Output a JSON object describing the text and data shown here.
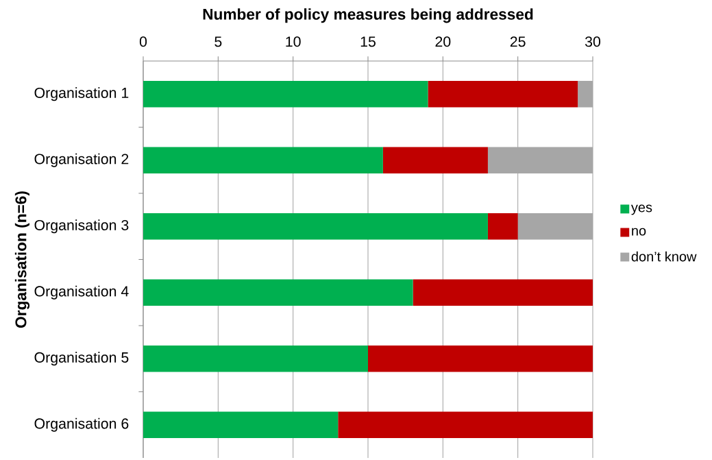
{
  "chart_data": {
    "type": "bar",
    "orientation": "horizontal",
    "stacked": true,
    "xlabel": "Number of policy measures being addressed",
    "ylabel": "Organisation (n=6)",
    "categories": [
      "Organisation 1",
      "Organisation 2",
      "Organisation 3",
      "Organisation 4",
      "Organisation 5",
      "Organisation 6"
    ],
    "series": [
      {
        "name": "yes",
        "color": "#00b050",
        "values": [
          19,
          16,
          23,
          18,
          15,
          13
        ]
      },
      {
        "name": "no",
        "color": "#c00000",
        "values": [
          10,
          7,
          2,
          12,
          15,
          17
        ]
      },
      {
        "name": "don’t know",
        "color": "#a6a6a6",
        "values": [
          1,
          7,
          5,
          0,
          0,
          0
        ]
      }
    ],
    "xlim": [
      0,
      30
    ],
    "xticks": [
      0,
      5,
      10,
      15,
      20,
      25,
      30
    ],
    "grid": "x",
    "legend": "right"
  }
}
